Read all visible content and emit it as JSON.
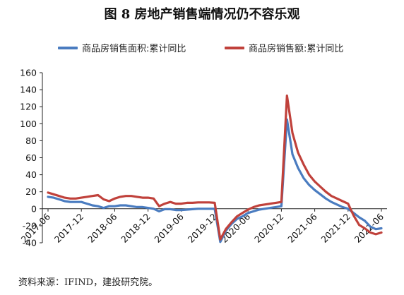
{
  "page": {
    "title": "图 8  房地产销售端情况仍不容乐观",
    "source": "资料来源：IFIND，建投研究院。"
  },
  "chart_data": {
    "type": "line",
    "title": "图 8  房地产销售端情况仍不容乐观",
    "xlabel": "",
    "ylabel": "",
    "ylim": [
      -40,
      160
    ],
    "yticks": [
      -40,
      -20,
      0,
      20,
      40,
      60,
      80,
      100,
      120,
      140,
      160
    ],
    "xticks": [
      "2017-06",
      "2017-12",
      "2018-06",
      "2018-12",
      "2019-06",
      "2019-12",
      "2020-06",
      "2020-12",
      "2021-06",
      "2021-12",
      "2022-06"
    ],
    "legend_position": "top",
    "grid": false,
    "x": [
      "2017-06",
      "2017-07",
      "2017-08",
      "2017-09",
      "2017-10",
      "2017-11",
      "2017-12",
      "2018-01",
      "2018-02",
      "2018-03",
      "2018-04",
      "2018-05",
      "2018-06",
      "2018-07",
      "2018-08",
      "2018-09",
      "2018-10",
      "2018-11",
      "2018-12",
      "2019-01",
      "2019-02",
      "2019-03",
      "2019-04",
      "2019-05",
      "2019-06",
      "2019-07",
      "2019-08",
      "2019-09",
      "2019-10",
      "2019-11",
      "2019-12",
      "2020-01",
      "2020-02",
      "2020-03",
      "2020-04",
      "2020-05",
      "2020-06",
      "2020-07",
      "2020-08",
      "2020-09",
      "2020-10",
      "2020-11",
      "2020-12",
      "2021-01",
      "2021-02",
      "2021-03",
      "2021-04",
      "2021-05",
      "2021-06",
      "2021-07",
      "2021-08",
      "2021-09",
      "2021-10",
      "2021-11",
      "2021-12",
      "2022-01",
      "2022-02",
      "2022-03",
      "2022-04",
      "2022-05",
      "2022-06"
    ],
    "series": [
      {
        "name": "商品房销售面积:累计同比",
        "color": "#4a7cc0",
        "values": [
          14,
          13,
          11,
          9,
          8,
          8,
          8,
          6,
          4,
          3,
          1,
          3,
          3,
          4,
          4,
          3,
          2,
          2,
          1,
          0,
          -3,
          -0.5,
          -0.5,
          -1.5,
          -1.5,
          -1,
          -0.5,
          0,
          0,
          0,
          0,
          -39,
          -26,
          -18,
          -12,
          -9,
          -5,
          -3,
          -1,
          0,
          1,
          2,
          3,
          105,
          64,
          48,
          36,
          28,
          22,
          17,
          12,
          8,
          5,
          2,
          0,
          -5,
          -10,
          -14,
          -21,
          -24,
          -23
        ],
        "note": ""
      },
      {
        "name": "商品房销售额:累计同比",
        "color": "#c0413b",
        "values": [
          19,
          17,
          15,
          13,
          12,
          12,
          13,
          14,
          15,
          16,
          11,
          9,
          12,
          14,
          15,
          15,
          14,
          13,
          13,
          12,
          3,
          6,
          8,
          6,
          6,
          7,
          7,
          7.5,
          7.5,
          7.5,
          7,
          -36,
          -24,
          -16,
          -9,
          -5,
          -1,
          2,
          4,
          5,
          6,
          7,
          8,
          133,
          89,
          66,
          52,
          40,
          32,
          26,
          20,
          15,
          12,
          9,
          6,
          -8,
          -19,
          -23,
          -28,
          -30,
          -28
        ]
      }
    ]
  },
  "colors": {
    "area_series": "#4a7cc0",
    "amount_series": "#c0413b"
  }
}
